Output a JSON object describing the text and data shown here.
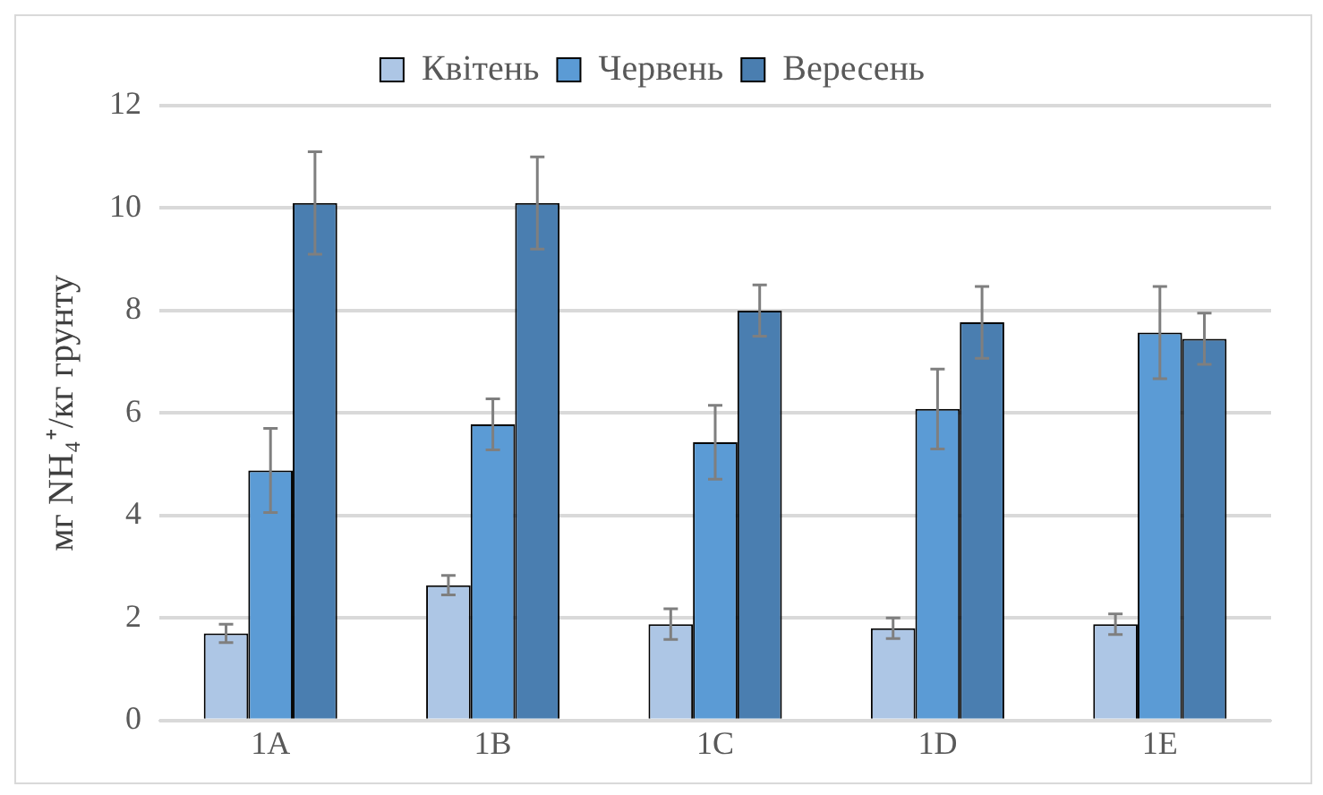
{
  "chart_data": {
    "type": "bar",
    "ylabel": "мг NH₄⁺/кг грунту",
    "categories": [
      "1A",
      "1B",
      "1C",
      "1D",
      "1E"
    ],
    "series": [
      {
        "name": "Квітень",
        "color": "#adc6e5",
        "values": [
          1.7,
          2.64,
          1.88,
          1.8,
          1.88
        ],
        "errors": [
          0.18,
          0.19,
          0.3,
          0.2,
          0.2
        ]
      },
      {
        "name": "Червень",
        "color": "#5b9bd5",
        "values": [
          4.88,
          5.78,
          5.43,
          6.08,
          7.57
        ],
        "errors": [
          0.82,
          0.5,
          0.72,
          0.78,
          0.9
        ]
      },
      {
        "name": "Вересень",
        "color": "#4a7eb0",
        "values": [
          10.1,
          10.1,
          8.0,
          7.77,
          7.45
        ],
        "errors": [
          1.0,
          0.9,
          0.5,
          0.7,
          0.5
        ]
      }
    ],
    "ylim": [
      0,
      12
    ],
    "yticks": [
      0,
      2,
      4,
      6,
      8,
      10,
      12
    ],
    "grid": "y",
    "legend": "top"
  }
}
